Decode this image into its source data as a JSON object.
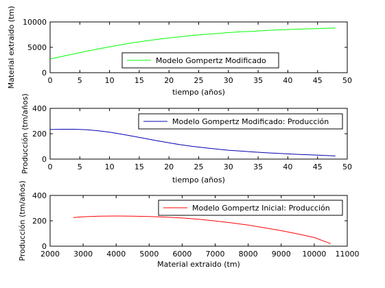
{
  "chart_data": [
    {
      "type": "line",
      "xlabel": "tiempo (años)",
      "ylabel": "Material extraido (tm)",
      "xlim": [
        0,
        50
      ],
      "ylim": [
        0,
        10000
      ],
      "xticks": [
        0,
        5,
        10,
        15,
        20,
        25,
        30,
        35,
        40,
        45,
        50
      ],
      "yticks": [
        0,
        5000,
        10000
      ],
      "grid": false,
      "legend_position": "bottom-center",
      "series": [
        {
          "name": "Modelo Gompertz Modificado",
          "color": "#00ff00",
          "x": [
            0,
            2,
            4,
            6,
            8,
            10,
            12,
            14,
            16,
            18,
            20,
            22,
            24,
            26,
            28,
            30,
            32,
            34,
            36,
            38,
            40,
            42,
            44,
            46,
            48
          ],
          "y": [
            2700,
            3200,
            3700,
            4200,
            4650,
            5100,
            5500,
            5900,
            6250,
            6550,
            6850,
            7100,
            7350,
            7550,
            7700,
            7900,
            8050,
            8150,
            8300,
            8400,
            8500,
            8600,
            8650,
            8750,
            8800
          ]
        }
      ]
    },
    {
      "type": "line",
      "xlabel": "tiempo (años)",
      "ylabel": "Producción (tm/años)",
      "xlim": [
        0,
        50
      ],
      "ylim": [
        0,
        400
      ],
      "xticks": [
        0,
        5,
        10,
        15,
        20,
        25,
        30,
        35,
        40,
        45,
        50
      ],
      "yticks": [
        0,
        200,
        400
      ],
      "grid": false,
      "legend_position": "top-right",
      "series": [
        {
          "name": "Modelo Gompertz Modificado: Producción",
          "color": "#0000b0",
          "x": [
            0,
            2,
            4,
            6,
            8,
            10,
            12,
            14,
            16,
            18,
            20,
            22,
            24,
            26,
            28,
            30,
            32,
            34,
            36,
            38,
            40,
            42,
            44,
            46,
            48
          ],
          "y": [
            233,
            235,
            235,
            232,
            224,
            212,
            197,
            180,
            162,
            145,
            128,
            113,
            100,
            89,
            79,
            70,
            63,
            57,
            51,
            46,
            41,
            37,
            33,
            29,
            25
          ]
        }
      ]
    },
    {
      "type": "line",
      "xlabel": "Material extraido (tm)",
      "ylabel": "Producción (tm/años)",
      "xlim": [
        2000,
        11000
      ],
      "ylim": [
        0,
        400
      ],
      "xticks": [
        2000,
        3000,
        4000,
        5000,
        6000,
        7000,
        8000,
        9000,
        10000,
        11000
      ],
      "yticks": [
        0,
        200,
        400
      ],
      "grid": false,
      "legend_position": "top-right",
      "series": [
        {
          "name": "Modelo Gompertz Inicial: Producción",
          "color": "#ff0000",
          "x": [
            2700,
            3000,
            3500,
            4000,
            4500,
            5000,
            5500,
            6000,
            6500,
            7000,
            7500,
            8000,
            8500,
            9000,
            9500,
            10000,
            10500
          ],
          "y": [
            226,
            232,
            236,
            238,
            237,
            234,
            229,
            222,
            212,
            199,
            184,
            166,
            145,
            122,
            97,
            68,
            20
          ]
        }
      ]
    }
  ]
}
